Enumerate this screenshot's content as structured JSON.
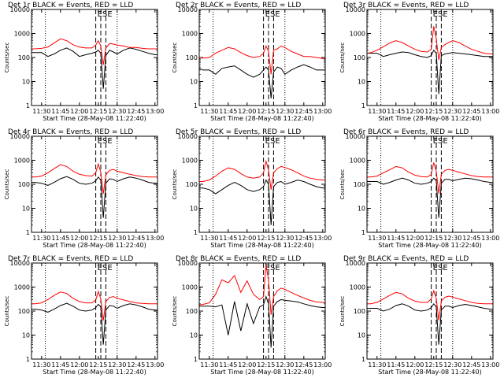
{
  "figure": {
    "xlabel": "Start Time (28-May-08 11:22:40)",
    "ylabel": "Counts/sec",
    "x_ticks": [
      "11:30",
      "11:45",
      "12:00",
      "12:15",
      "12:30",
      "12:45",
      "13:00"
    ],
    "y_ticks": [
      "1",
      "10",
      "100",
      "1000",
      "10000"
    ],
    "vertical_markers": [
      "E",
      "S",
      "E"
    ],
    "colors": {
      "events": "#000000",
      "lld": "#ff0000",
      "axes": "#000000"
    }
  },
  "chart_data": [
    {
      "type": "line",
      "title": "Det 1r BLACK = Events, RED = LLD",
      "x": [
        "11:22",
        "11:25",
        "11:30",
        "11:35",
        "11:40",
        "11:45",
        "11:50",
        "11:55",
        "12:00",
        "12:05",
        "12:10",
        "12:13",
        "12:15",
        "12:17",
        "12:19",
        "12:21",
        "12:24",
        "12:27",
        "12:30",
        "12:35",
        "12:40",
        "12:45",
        "12:50",
        "12:55",
        "13:00",
        "13:02"
      ],
      "ylim": [
        1,
        10000
      ],
      "yscale": "log",
      "series": [
        {
          "name": "LLD",
          "values": [
            230,
            230,
            240,
            270,
            400,
            600,
            500,
            340,
            270,
            250,
            250,
            330,
            500,
            300,
            50,
            250,
            380,
            360,
            330,
            300,
            260,
            260,
            240,
            230,
            230,
            230
          ]
        },
        {
          "name": "Events",
          "values": [
            160,
            160,
            160,
            110,
            140,
            200,
            250,
            180,
            110,
            130,
            150,
            170,
            200,
            150,
            5,
            120,
            200,
            170,
            140,
            200,
            250,
            220,
            180,
            150,
            130,
            130
          ]
        }
      ]
    },
    {
      "type": "line",
      "title": "Det 2r BLACK = Events, RED = LLD",
      "x": [
        "11:22",
        "11:25",
        "11:30",
        "11:35",
        "11:40",
        "11:45",
        "11:50",
        "11:55",
        "12:00",
        "12:05",
        "12:10",
        "12:13",
        "12:15",
        "12:17",
        "12:19",
        "12:21",
        "12:24",
        "12:27",
        "12:30",
        "12:35",
        "12:40",
        "12:45",
        "12:50",
        "12:55",
        "13:00",
        "13:02"
      ],
      "ylim": [
        1,
        10000
      ],
      "yscale": "log",
      "series": [
        {
          "name": "LLD",
          "values": [
            100,
            95,
            100,
            150,
            200,
            260,
            230,
            160,
            120,
            100,
            110,
            150,
            300,
            180,
            20,
            200,
            230,
            300,
            260,
            180,
            140,
            110,
            110,
            100,
            90,
            90
          ]
        },
        {
          "name": "Events",
          "values": [
            35,
            30,
            30,
            20,
            35,
            40,
            45,
            30,
            20,
            15,
            20,
            30,
            40,
            30,
            2,
            25,
            40,
            35,
            20,
            30,
            40,
            50,
            40,
            30,
            30,
            30
          ]
        }
      ]
    },
    {
      "type": "line",
      "title": "Det 3r BLACK = Events, RED = LLD",
      "x": [
        "11:22",
        "11:25",
        "11:30",
        "11:35",
        "11:40",
        "11:45",
        "11:50",
        "11:55",
        "12:00",
        "12:05",
        "12:10",
        "12:13",
        "12:15",
        "12:17",
        "12:19",
        "12:21",
        "12:24",
        "12:27",
        "12:30",
        "12:35",
        "12:40",
        "12:45",
        "12:50",
        "12:55",
        "13:00",
        "13:02"
      ],
      "ylim": [
        1,
        10000
      ],
      "yscale": "log",
      "series": [
        {
          "name": "LLD",
          "values": [
            150,
            160,
            200,
            280,
            400,
            500,
            420,
            300,
            220,
            180,
            170,
            220,
            2000,
            600,
            80,
            260,
            350,
            420,
            500,
            420,
            300,
            220,
            180,
            150,
            140,
            140
          ]
        },
        {
          "name": "Events",
          "values": [
            150,
            150,
            150,
            110,
            130,
            150,
            170,
            160,
            130,
            110,
            100,
            120,
            200,
            150,
            3,
            120,
            140,
            150,
            160,
            150,
            140,
            130,
            120,
            110,
            110,
            110
          ]
        }
      ]
    },
    {
      "type": "line",
      "title": "Det 4r BLACK = Events, RED = LLD",
      "x": [
        "11:22",
        "11:25",
        "11:30",
        "11:35",
        "11:40",
        "11:45",
        "11:50",
        "11:55",
        "12:00",
        "12:05",
        "12:10",
        "12:13",
        "12:15",
        "12:17",
        "12:19",
        "12:21",
        "12:24",
        "12:27",
        "12:30",
        "12:35",
        "12:40",
        "12:45",
        "12:50",
        "12:55",
        "13:00",
        "13:02"
      ],
      "ylim": [
        1,
        10000
      ],
      "yscale": "log",
      "series": [
        {
          "name": "LLD",
          "values": [
            200,
            200,
            220,
            300,
            450,
            650,
            550,
            350,
            260,
            230,
            220,
            300,
            700,
            320,
            40,
            250,
            380,
            420,
            350,
            300,
            260,
            230,
            210,
            200,
            200,
            200
          ]
        },
        {
          "name": "Events",
          "values": [
            120,
            120,
            110,
            90,
            120,
            170,
            210,
            160,
            110,
            100,
            110,
            140,
            200,
            150,
            4,
            110,
            170,
            160,
            130,
            170,
            200,
            180,
            150,
            120,
            110,
            110
          ]
        }
      ]
    },
    {
      "type": "line",
      "title": "Det 5r BLACK = Events, RED = LLD",
      "x": [
        "11:22",
        "11:25",
        "11:30",
        "11:35",
        "11:40",
        "11:45",
        "11:50",
        "11:55",
        "12:00",
        "12:05",
        "12:10",
        "12:13",
        "12:15",
        "12:17",
        "12:19",
        "12:21",
        "12:24",
        "12:27",
        "12:30",
        "12:35",
        "12:40",
        "12:45",
        "12:50",
        "12:55",
        "13:00",
        "13:02"
      ],
      "ylim": [
        1,
        10000
      ],
      "yscale": "log",
      "series": [
        {
          "name": "LLD",
          "values": [
            130,
            130,
            150,
            220,
            350,
            480,
            420,
            280,
            200,
            180,
            200,
            300,
            900,
            400,
            60,
            300,
            450,
            550,
            500,
            400,
            300,
            220,
            180,
            160,
            150,
            150
          ]
        },
        {
          "name": "Events",
          "values": [
            70,
            70,
            60,
            40,
            60,
            90,
            120,
            90,
            60,
            50,
            60,
            80,
            150,
            100,
            2,
            80,
            120,
            130,
            100,
            120,
            150,
            130,
            100,
            80,
            70,
            70
          ]
        }
      ]
    },
    {
      "type": "line",
      "title": "Det 6r BLACK = Events, RED = LLD",
      "x": [
        "11:22",
        "11:25",
        "11:30",
        "11:35",
        "11:40",
        "11:45",
        "11:50",
        "11:55",
        "12:00",
        "12:05",
        "12:10",
        "12:13",
        "12:15",
        "12:17",
        "12:19",
        "12:21",
        "12:24",
        "12:27",
        "12:30",
        "12:35",
        "12:40",
        "12:45",
        "12:50",
        "12:55",
        "13:00",
        "13:02"
      ],
      "ylim": [
        1,
        10000
      ],
      "yscale": "log",
      "series": [
        {
          "name": "LLD",
          "values": [
            200,
            200,
            220,
            300,
            400,
            550,
            480,
            320,
            240,
            210,
            200,
            260,
            800,
            350,
            40,
            260,
            380,
            420,
            380,
            320,
            270,
            230,
            210,
            200,
            200,
            200
          ]
        },
        {
          "name": "Events",
          "values": [
            130,
            130,
            130,
            100,
            120,
            150,
            180,
            150,
            110,
            100,
            110,
            130,
            180,
            140,
            4,
            110,
            160,
            160,
            140,
            160,
            180,
            170,
            150,
            130,
            120,
            120
          ]
        }
      ]
    },
    {
      "type": "line",
      "title": "Det 7r BLACK = Events, RED = LLD",
      "x": [
        "11:22",
        "11:25",
        "11:30",
        "11:35",
        "11:40",
        "11:45",
        "11:50",
        "11:55",
        "12:00",
        "12:05",
        "12:10",
        "12:13",
        "12:15",
        "12:17",
        "12:19",
        "12:21",
        "12:24",
        "12:27",
        "12:30",
        "12:35",
        "12:40",
        "12:45",
        "12:50",
        "12:55",
        "13:00",
        "13:02"
      ],
      "ylim": [
        1,
        10000
      ],
      "yscale": "log",
      "series": [
        {
          "name": "LLD",
          "values": [
            200,
            200,
            220,
            300,
            450,
            620,
            540,
            340,
            250,
            220,
            220,
            290,
            650,
            320,
            40,
            250,
            370,
            400,
            340,
            290,
            250,
            220,
            210,
            200,
            200,
            200
          ]
        },
        {
          "name": "Events",
          "values": [
            120,
            120,
            110,
            90,
            120,
            170,
            210,
            160,
            110,
            100,
            110,
            140,
            190,
            150,
            4,
            110,
            170,
            160,
            130,
            170,
            200,
            180,
            150,
            120,
            110,
            110
          ]
        }
      ]
    },
    {
      "type": "line",
      "title": "Det 8r BLACK = Events, RED = LLD",
      "x": [
        "11:22",
        "11:25",
        "11:30",
        "11:35",
        "11:40",
        "11:45",
        "11:50",
        "11:55",
        "12:00",
        "12:05",
        "12:10",
        "12:13",
        "12:15",
        "12:17",
        "12:19",
        "12:21",
        "12:24",
        "12:27",
        "12:30",
        "12:35",
        "12:40",
        "12:45",
        "12:50",
        "12:55",
        "13:00",
        "13:02"
      ],
      "ylim": [
        1,
        10000
      ],
      "yscale": "log",
      "series": [
        {
          "name": "LLD",
          "values": [
            180,
            190,
            220,
            500,
            2000,
            1500,
            3000,
            600,
            1800,
            500,
            300,
            400,
            8000,
            2000,
            70,
            400,
            700,
            900,
            800,
            600,
            450,
            350,
            280,
            240,
            230,
            230
          ]
        },
        {
          "name": "Events",
          "values": [
            160,
            160,
            160,
            150,
            180,
            10,
            250,
            15,
            200,
            30,
            150,
            180,
            400,
            200,
            3,
            160,
            250,
            300,
            280,
            260,
            240,
            200,
            170,
            150,
            140,
            140
          ]
        }
      ]
    },
    {
      "type": "line",
      "title": "Det 9r BLACK = Events, RED = LLD",
      "x": [
        "11:22",
        "11:25",
        "11:30",
        "11:35",
        "11:40",
        "11:45",
        "11:50",
        "11:55",
        "12:00",
        "12:05",
        "12:10",
        "12:13",
        "12:15",
        "12:17",
        "12:19",
        "12:21",
        "12:24",
        "12:27",
        "12:30",
        "12:35",
        "12:40",
        "12:45",
        "12:50",
        "12:55",
        "13:00",
        "13:02"
      ],
      "ylim": [
        1,
        10000
      ],
      "yscale": "log",
      "series": [
        {
          "name": "LLD",
          "values": [
            200,
            200,
            230,
            320,
            450,
            600,
            520,
            340,
            260,
            230,
            230,
            320,
            700,
            340,
            40,
            260,
            380,
            420,
            380,
            320,
            270,
            230,
            210,
            200,
            200,
            200
          ]
        },
        {
          "name": "Events",
          "values": [
            130,
            130,
            130,
            100,
            120,
            170,
            200,
            160,
            110,
            100,
            110,
            140,
            200,
            150,
            4,
            110,
            160,
            160,
            140,
            170,
            190,
            170,
            150,
            130,
            120,
            120
          ]
        }
      ]
    }
  ]
}
